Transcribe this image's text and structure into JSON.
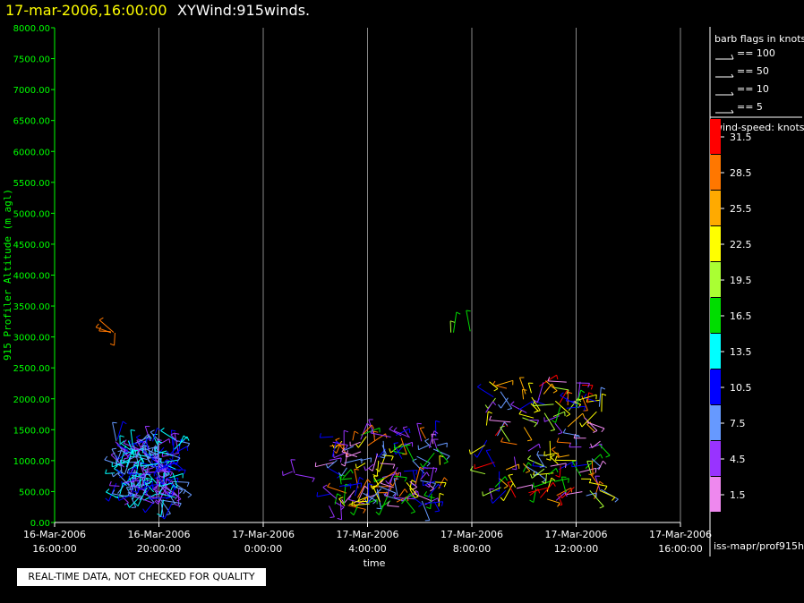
{
  "header": {
    "date_title": "17-mar-2006,16:00:00",
    "plot_title": "XYWind:915winds."
  },
  "footer": {
    "qc_note": "REAL-TIME DATA, NOT CHECKED FOR QUALITY",
    "source": "iss-mapr/prof915h"
  },
  "colors": {
    "axis": "#00ff00",
    "text": "#ffffff",
    "grid": "#888888",
    "background": "#000000"
  },
  "chart_data": {
    "type": "wind-barb time-height",
    "ylabel": "915 Profiler Altitude (m agl)",
    "xlabel": "time",
    "ylim": [
      0,
      8000
    ],
    "yticks": [
      "0.00",
      "500.00",
      "1000.00",
      "1500.00",
      "2000.00",
      "2500.00",
      "3000.00",
      "3500.00",
      "4000.00",
      "4500.00",
      "5000.00",
      "5500.00",
      "6000.00",
      "6500.00",
      "7000.00",
      "7500.00",
      "8000.00"
    ],
    "xlim_hours": [
      0,
      24
    ],
    "xticks": [
      {
        "date": "16-Mar-2006",
        "time": "16:00:00"
      },
      {
        "date": "16-Mar-2006",
        "time": "20:00:00"
      },
      {
        "date": "17-Mar-2006",
        "time": "0:00:00"
      },
      {
        "date": "17-Mar-2006",
        "time": "4:00:00"
      },
      {
        "date": "17-Mar-2006",
        "time": "8:00:00"
      },
      {
        "date": "17-Mar-2006",
        "time": "12:00:00"
      },
      {
        "date": "17-Mar-2006",
        "time": "16:00:00"
      }
    ],
    "grid": "vertical",
    "barb_legend": {
      "title": "barb flags in knots",
      "items": [
        "== 100",
        "== 50",
        "== 10",
        "== 5"
      ]
    },
    "speed_legend": {
      "title": "wind-speed: knots",
      "bins": [
        {
          "label": "31.5",
          "color": "#ff0000"
        },
        {
          "label": "28.5",
          "color": "#ff7700"
        },
        {
          "label": "25.5",
          "color": "#ffaa00"
        },
        {
          "label": "22.5",
          "color": "#ffff00"
        },
        {
          "label": "19.5",
          "color": "#aaff33"
        },
        {
          "label": "16.5",
          "color": "#00dd00"
        },
        {
          "label": "13.5",
          "color": "#00ffff"
        },
        {
          "label": "10.5",
          "color": "#0000ff"
        },
        {
          "label": "7.5",
          "color": "#6699ff"
        },
        {
          "label": "4.5",
          "color": "#9933ff"
        },
        {
          "label": "1.5",
          "color": "#ee88ee"
        }
      ]
    },
    "clusters": [
      {
        "t_start": 2.3,
        "t_end": 4.8,
        "alt_min": 300,
        "alt_max": 1350,
        "count": 200,
        "speeds": [
          "#0000ff",
          "#6699ff",
          "#00ffff",
          "#9933ff"
        ]
      },
      {
        "t_start": 1.9,
        "t_end": 2.6,
        "alt_min": 2950,
        "alt_max": 3100,
        "count": 4,
        "speeds": [
          "#ff7700"
        ]
      },
      {
        "t_start": 8.3,
        "t_end": 9.3,
        "alt_min": 750,
        "alt_max": 830,
        "count": 3,
        "speeds": [
          "#9933ff"
        ]
      },
      {
        "t_start": 10.5,
        "t_end": 14.8,
        "alt_min": 250,
        "alt_max": 1450,
        "count": 150,
        "speeds": [
          "#0000ff",
          "#6699ff",
          "#9933ff",
          "#00dd00",
          "#ffff00",
          "#ff7700",
          "#ee88ee"
        ]
      },
      {
        "t_start": 15.0,
        "t_end": 16.0,
        "alt_min": 3050,
        "alt_max": 3120,
        "count": 3,
        "speeds": [
          "#aaff33",
          "#00dd00"
        ]
      },
      {
        "t_start": 16.5,
        "t_end": 21.0,
        "alt_min": 350,
        "alt_max": 2300,
        "count": 140,
        "speeds": [
          "#0000ff",
          "#6699ff",
          "#9933ff",
          "#ee88ee",
          "#ff0000",
          "#ff7700",
          "#ffaa00",
          "#ffff00",
          "#00dd00",
          "#aaff33"
        ]
      }
    ]
  }
}
